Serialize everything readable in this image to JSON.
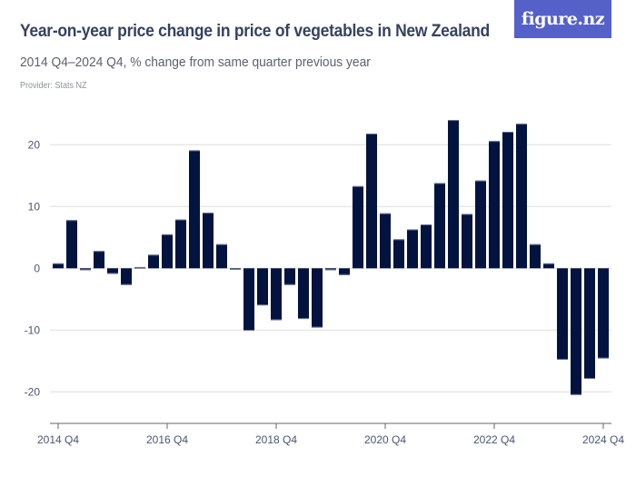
{
  "header": {
    "title": "Year-on-year price change in price of vegetables in New Zealand",
    "subtitle": "2014 Q4–2024 Q4, % change from same quarter previous year",
    "provider": "Provider: Stats NZ",
    "logo": "figure.nz",
    "logo_color": "#5561c9"
  },
  "colors": {
    "bar": "#03133f",
    "bar_edge": "#6b7590",
    "grid": "#dddddd",
    "axis": "#666666",
    "text": "#4a5573"
  },
  "chart_data": {
    "type": "bar",
    "title": "Year-on-year price change in price of vegetables in New Zealand",
    "subtitle": "2014 Q4–2024 Q4, % change from same quarter previous year",
    "xlabel": "",
    "ylabel": "% change from same quarter previous year",
    "ylim": [
      -25,
      25
    ],
    "yticks": [
      -20,
      -10,
      0,
      10,
      20
    ],
    "grid": true,
    "legend": "none",
    "x_tick_labels": [
      "2014 Q4",
      "2016 Q4",
      "2018 Q4",
      "2020 Q4",
      "2022 Q4",
      "2024 Q4"
    ],
    "categories": [
      "2014 Q4",
      "2015 Q1",
      "2015 Q2",
      "2015 Q3",
      "2015 Q4",
      "2016 Q1",
      "2016 Q2",
      "2016 Q3",
      "2016 Q4",
      "2017 Q1",
      "2017 Q2",
      "2017 Q3",
      "2017 Q4",
      "2018 Q1",
      "2018 Q2",
      "2018 Q3",
      "2018 Q4",
      "2019 Q1",
      "2019 Q2",
      "2019 Q3",
      "2019 Q4",
      "2020 Q1",
      "2020 Q2",
      "2020 Q3",
      "2020 Q4",
      "2021 Q1",
      "2021 Q2",
      "2021 Q3",
      "2021 Q4",
      "2022 Q1",
      "2022 Q2",
      "2022 Q3",
      "2022 Q4",
      "2023 Q1",
      "2023 Q2",
      "2023 Q3",
      "2023 Q4",
      "2024 Q1",
      "2024 Q2",
      "2024 Q3",
      "2024 Q4"
    ],
    "values": [
      0.8,
      7.8,
      -0.3,
      2.8,
      -0.9,
      -2.7,
      0.2,
      2.2,
      5.5,
      7.9,
      19.1,
      9.0,
      3.9,
      -0.1,
      -10.1,
      -6.0,
      -8.4,
      -2.7,
      -8.2,
      -9.6,
      -0.3,
      -1.1,
      13.3,
      21.8,
      8.9,
      4.7,
      6.3,
      7.1,
      13.8,
      24.0,
      8.8,
      14.2,
      20.6,
      22.1,
      23.4,
      3.9,
      0.8,
      -14.8,
      -20.5,
      -17.9,
      -14.6
    ]
  }
}
